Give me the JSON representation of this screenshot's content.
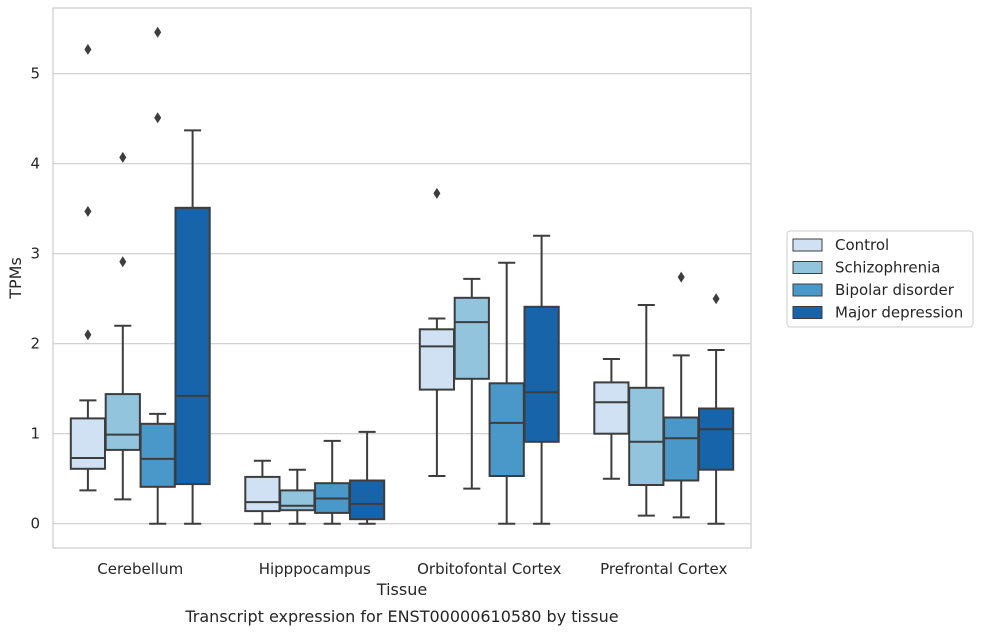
{
  "chart_data": {
    "type": "boxplot",
    "title": "Transcript expression for ENST00000610580 by tissue",
    "xlabel": "Tissue",
    "ylabel": "TPMs",
    "categories": [
      "Cerebellum",
      "Hipppocampus",
      "Orbitofontal Cortex",
      "Prefrontal Cortex"
    ],
    "y_ticks": [
      0,
      1,
      2,
      3,
      4,
      5
    ],
    "ylim": [
      -0.27,
      5.73
    ],
    "grid": "horizontal",
    "legend_position": "right",
    "series": [
      {
        "name": "Control",
        "color": "#cfe1f2",
        "boxes": [
          {
            "whisker_low": 0.37,
            "q1": 0.61,
            "median": 0.73,
            "q3": 1.17,
            "whisker_high": 1.37,
            "outliers": [
              2.1,
              3.47,
              5.27
            ]
          },
          {
            "whisker_low": 0.0,
            "q1": 0.14,
            "median": 0.24,
            "q3": 0.52,
            "whisker_high": 0.7,
            "outliers": []
          },
          {
            "whisker_low": 0.53,
            "q1": 1.49,
            "median": 1.97,
            "q3": 2.16,
            "whisker_high": 2.28,
            "outliers": [
              3.67
            ]
          },
          {
            "whisker_low": 0.5,
            "q1": 1.0,
            "median": 1.35,
            "q3": 1.57,
            "whisker_high": 1.83,
            "outliers": []
          }
        ]
      },
      {
        "name": "Schizophrenia",
        "color": "#93c4de",
        "boxes": [
          {
            "whisker_low": 0.27,
            "q1": 0.82,
            "median": 0.99,
            "q3": 1.44,
            "whisker_high": 2.2,
            "outliers": [
              2.91,
              4.07
            ]
          },
          {
            "whisker_low": 0.0,
            "q1": 0.15,
            "median": 0.2,
            "q3": 0.37,
            "whisker_high": 0.6,
            "outliers": []
          },
          {
            "whisker_low": 0.39,
            "q1": 1.61,
            "median": 2.24,
            "q3": 2.51,
            "whisker_high": 2.72,
            "outliers": []
          },
          {
            "whisker_low": 0.09,
            "q1": 0.43,
            "median": 0.91,
            "q3": 1.51,
            "whisker_high": 2.43,
            "outliers": []
          }
        ]
      },
      {
        "name": "Bipolar disorder",
        "color": "#4a98c9",
        "boxes": [
          {
            "whisker_low": 0.0,
            "q1": 0.41,
            "median": 0.72,
            "q3": 1.11,
            "whisker_high": 1.22,
            "outliers": [
              4.51,
              5.46
            ]
          },
          {
            "whisker_low": 0.0,
            "q1": 0.12,
            "median": 0.28,
            "q3": 0.45,
            "whisker_high": 0.92,
            "outliers": []
          },
          {
            "whisker_low": 0.0,
            "q1": 0.53,
            "median": 1.12,
            "q3": 1.56,
            "whisker_high": 2.9,
            "outliers": []
          },
          {
            "whisker_low": 0.07,
            "q1": 0.48,
            "median": 0.95,
            "q3": 1.18,
            "whisker_high": 1.87,
            "outliers": [
              2.74
            ]
          }
        ]
      },
      {
        "name": "Major depression",
        "color": "#1764ab",
        "boxes": [
          {
            "whisker_low": 0.0,
            "q1": 0.44,
            "median": 1.42,
            "q3": 3.51,
            "whisker_high": 4.37,
            "outliers": []
          },
          {
            "whisker_low": 0.0,
            "q1": 0.05,
            "median": 0.22,
            "q3": 0.48,
            "whisker_high": 1.02,
            "outliers": []
          },
          {
            "whisker_low": 0.0,
            "q1": 0.91,
            "median": 1.46,
            "q3": 2.41,
            "whisker_high": 3.2,
            "outliers": []
          },
          {
            "whisker_low": 0.0,
            "q1": 0.6,
            "median": 1.05,
            "q3": 1.28,
            "whisker_high": 1.93,
            "outliers": [
              2.5
            ]
          }
        ]
      }
    ]
  }
}
